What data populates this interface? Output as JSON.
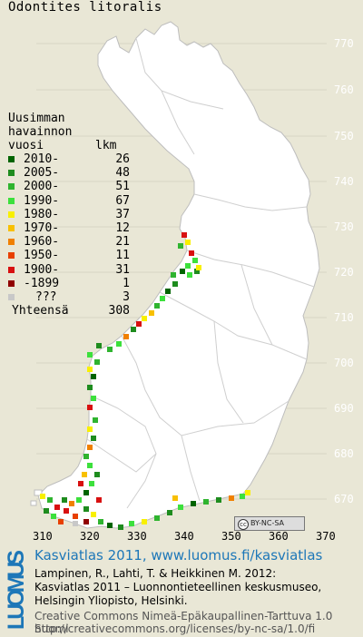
{
  "species": "Odontites litoralis",
  "legend": {
    "header_lines": [
      "Uusimman",
      "havainnon"
    ],
    "header_year": "vuosi",
    "header_count": "lkm",
    "rows": [
      {
        "label": "2010-",
        "count": "26",
        "color": "#006400"
      },
      {
        "label": "2005-",
        "count": "48",
        "color": "#1e8c1e"
      },
      {
        "label": "2000-",
        "count": "51",
        "color": "#2fb42f"
      },
      {
        "label": "1990-",
        "count": "67",
        "color": "#3ce03c"
      },
      {
        "label": "1980-",
        "count": "37",
        "color": "#f8f000"
      },
      {
        "label": "1970-",
        "count": "12",
        "color": "#f8c000"
      },
      {
        "label": "1960-",
        "count": "21",
        "color": "#f08000"
      },
      {
        "label": "1950-",
        "count": "11",
        "color": "#e84000"
      },
      {
        "label": "1900-",
        "count": "31",
        "color": "#d81010"
      },
      {
        "label": "-1899",
        "count": "1",
        "color": "#900000"
      },
      {
        "label": "???",
        "count": "3",
        "color": "#c8c8c8"
      }
    ],
    "total_label": "Yhteensä",
    "total_count": "308"
  },
  "y_ticks": [
    "770",
    "760",
    "750",
    "740",
    "730",
    "720",
    "710",
    "700",
    "690",
    "680",
    "670"
  ],
  "x_ticks": [
    "310",
    "320",
    "330",
    "340",
    "350",
    "360",
    "370"
  ],
  "license_badge": "BY-NC-SA",
  "footer": {
    "logo_text": "LUOMUS",
    "title": "Kasviatlas 2011, www.luomus.fi/kasviatlas",
    "lines": [
      "Lampinen, R., Lahti, T. & Heikkinen M. 2012:",
      "Kasviatlas 2011 – Luonnontieteellinen keskusmuseo,",
      "Helsingin Yliopisto, Helsinki."
    ],
    "cc_lines": [
      "Creative Commons Nimeä-Epäkaupallinen-Tarttuva 1.0 Suomi",
      "http://creativecommons.org/licenses/by-nc-sa/1.0/fi"
    ]
  },
  "colors": {
    "background": "#e9e7d6",
    "finland": "#ffffff",
    "boundaries": "#cfcfcf",
    "luomus_blue": "#1d77b8"
  }
}
